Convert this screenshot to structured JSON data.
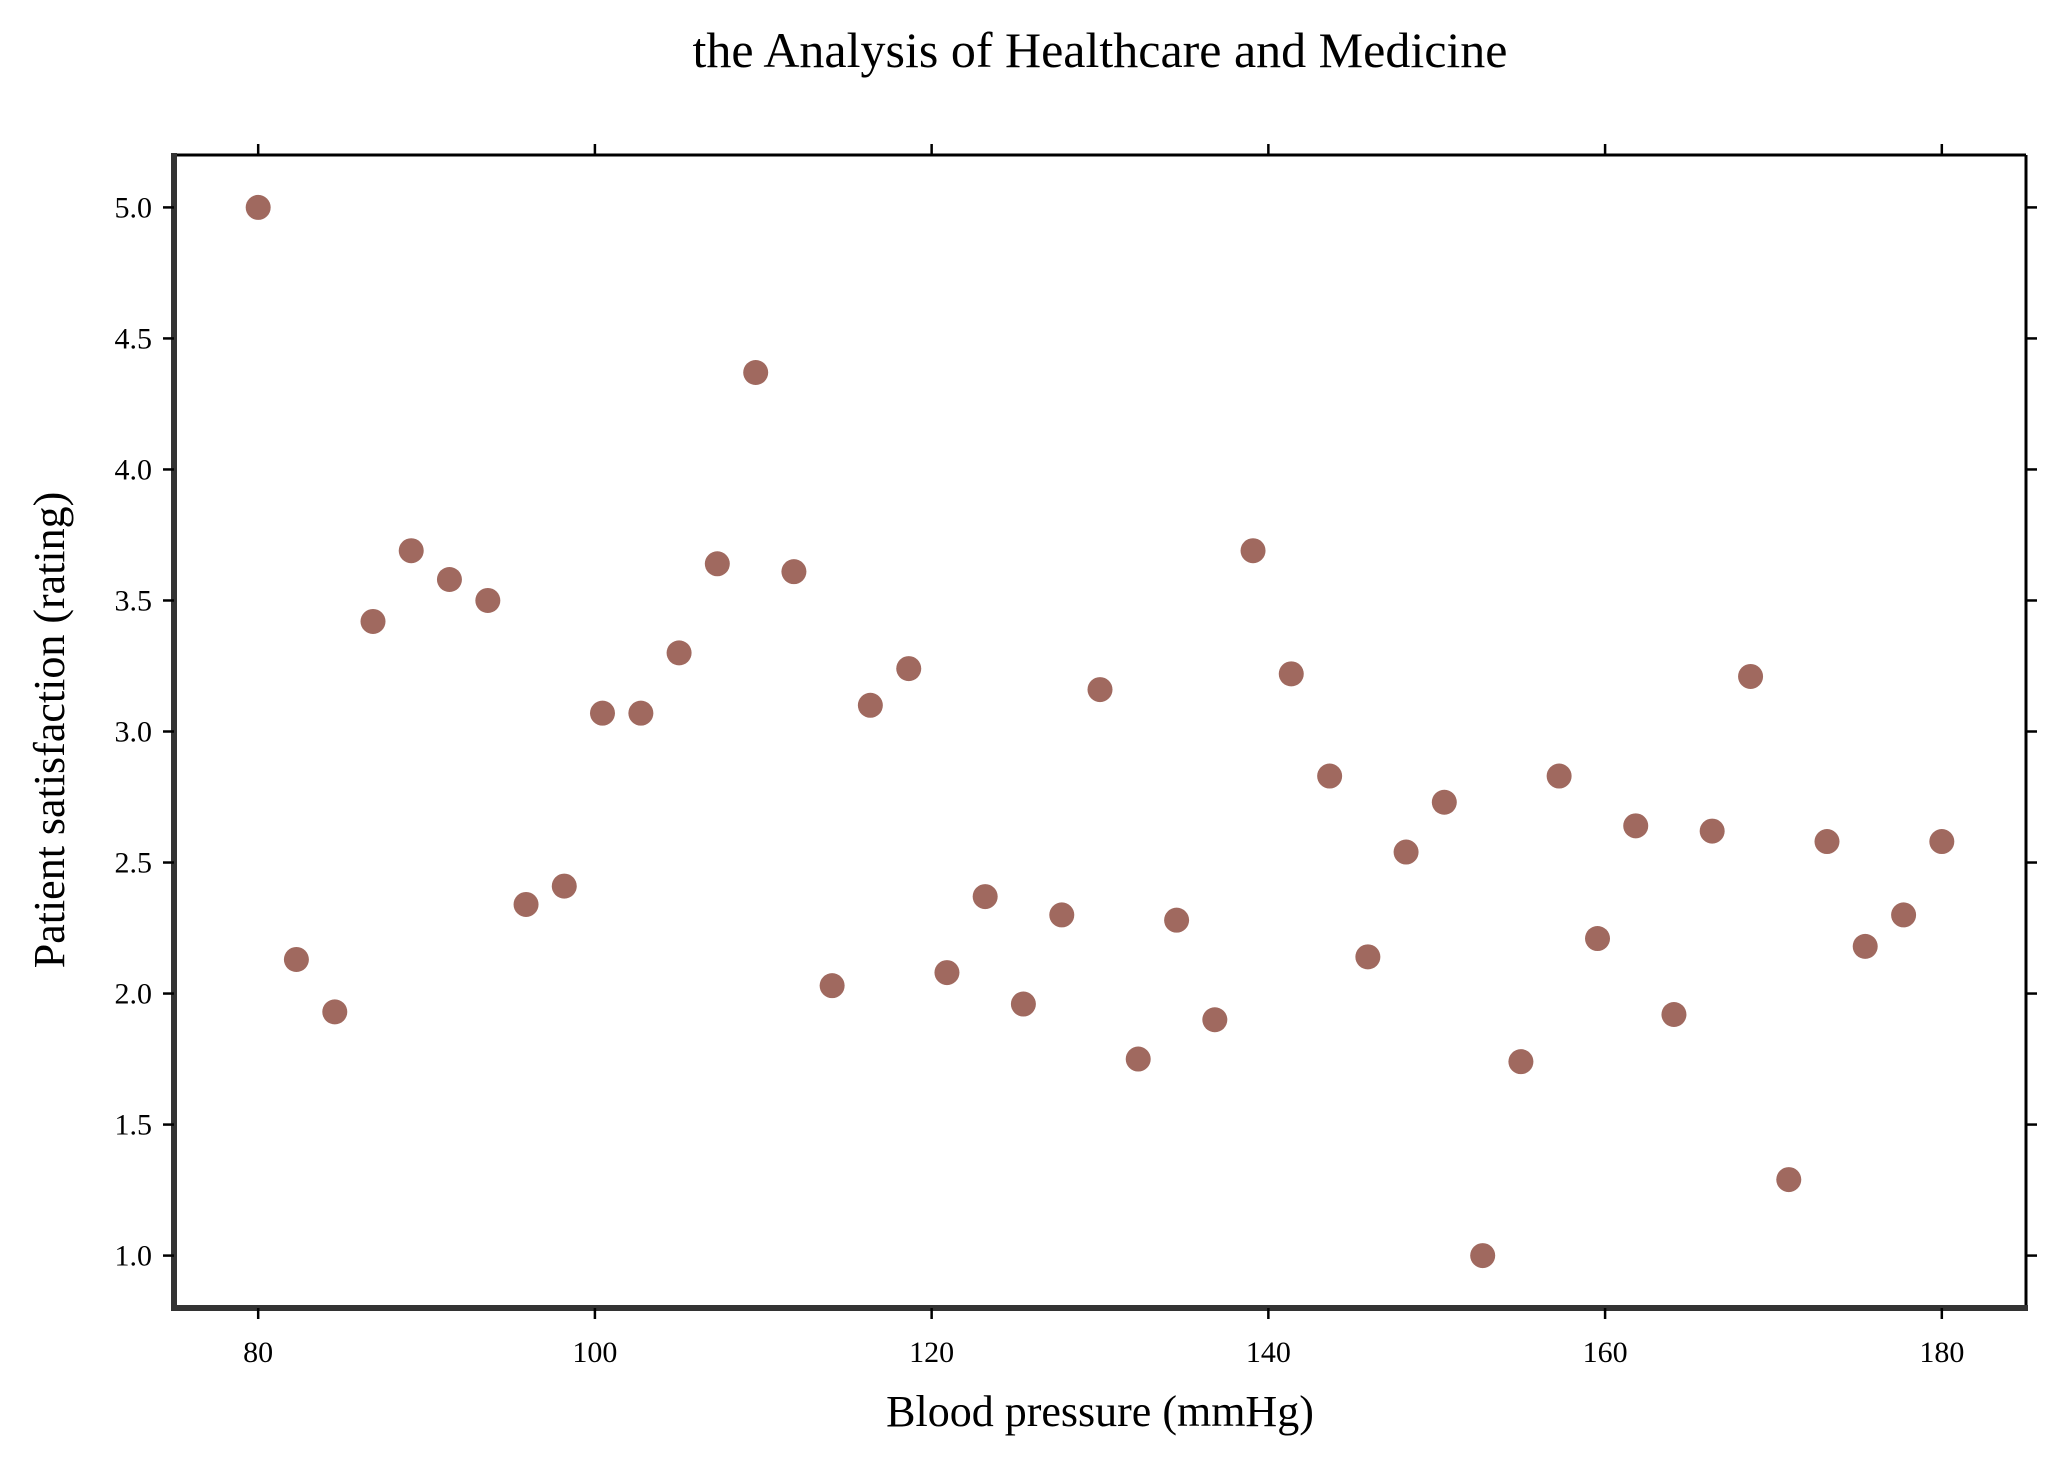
{
  "chart_data": {
    "type": "scatter",
    "title": "the Analysis of Healthcare and Medicine",
    "xlabel": "Blood pressure (mmHg)",
    "ylabel": "Patient satisfaction (rating)",
    "xlim": [
      75,
      185
    ],
    "ylim": [
      0.8,
      5.2
    ],
    "xticks": [
      80,
      100,
      120,
      140,
      160,
      180
    ],
    "yticks": [
      1.0,
      1.5,
      2.0,
      2.5,
      3.0,
      3.5,
      4.0,
      4.5,
      5.0
    ],
    "xtick_labels": [
      "80",
      "100",
      "120",
      "140",
      "160",
      "180"
    ],
    "ytick_labels": [
      "1.0",
      "1.5",
      "2.0",
      "2.5",
      "3.0",
      "3.5",
      "4.0",
      "4.5",
      "5.0"
    ],
    "grid": false,
    "marker_color": "#a0695f",
    "series": [
      {
        "x": [
          80.0,
          82.27,
          84.55,
          86.82,
          89.09,
          91.36,
          93.64,
          95.91,
          98.18,
          100.45,
          102.73,
          105.0,
          107.27,
          109.55,
          111.82,
          114.09,
          116.36,
          118.64,
          120.91,
          123.18,
          125.45,
          127.73,
          130.0,
          132.27,
          134.55,
          136.82,
          139.09,
          141.36,
          143.64,
          145.91,
          148.18,
          150.45,
          152.73,
          155.0,
          157.27,
          159.55,
          161.82,
          164.09,
          166.36,
          168.64,
          170.91,
          173.18,
          175.45,
          177.73,
          180.0
        ],
        "y": [
          5.0,
          2.13,
          1.93,
          3.42,
          3.69,
          3.58,
          3.5,
          2.34,
          2.41,
          3.07,
          3.07,
          3.3,
          3.64,
          4.37,
          3.61,
          2.03,
          3.1,
          3.24,
          2.08,
          2.37,
          1.96,
          2.3,
          3.16,
          1.75,
          2.28,
          1.9,
          3.69,
          3.22,
          2.83,
          2.14,
          2.54,
          2.73,
          1.0,
          1.74,
          2.83,
          2.21,
          2.64,
          1.92,
          2.62,
          3.21,
          1.29,
          2.58,
          2.18,
          2.3,
          2.58
        ]
      }
    ]
  }
}
